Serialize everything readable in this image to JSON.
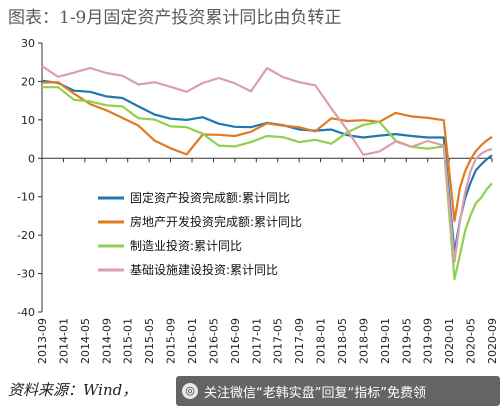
{
  "header": {
    "title": "图表：1-9月固定资产投资累计同比由负转正"
  },
  "footer": {
    "source": "资料来源：Wind，"
  },
  "watermark": {
    "text": "关注微信“老韩实盘”回复“指标”免费领"
  },
  "chart_data": {
    "type": "line",
    "ylim": [
      -40,
      30
    ],
    "yticks": [
      "-40",
      "-30",
      "-20",
      "-10",
      "0",
      "10",
      "20",
      "30"
    ],
    "x_range": [
      "2013-09",
      "2020-09"
    ],
    "xticks": [
      "2013-09",
      "2014-01",
      "2014-05",
      "2014-09",
      "2015-01",
      "2015-05",
      "2015-09",
      "2016-01",
      "2016-05",
      "2016-09",
      "2017-01",
      "2017-05",
      "2017-09",
      "2018-01",
      "2018-05",
      "2018-09",
      "2019-01",
      "2019-05",
      "2019-09",
      "2020-01",
      "2020-05",
      "2020-09"
    ],
    "legend": {
      "placement": "inside-bottom-left"
    },
    "series": [
      {
        "name": "固定资产投资完成额:累计同比",
        "color": "#1f77b4",
        "points": [
          [
            "2013-09",
            20.2
          ],
          [
            "2013-12",
            19.6
          ],
          [
            "2014-03",
            17.6
          ],
          [
            "2014-06",
            17.3
          ],
          [
            "2014-09",
            16.1
          ],
          [
            "2014-12",
            15.7
          ],
          [
            "2015-03",
            13.5
          ],
          [
            "2015-06",
            11.4
          ],
          [
            "2015-09",
            10.3
          ],
          [
            "2015-12",
            10.0
          ],
          [
            "2016-03",
            10.7
          ],
          [
            "2016-06",
            9.0
          ],
          [
            "2016-09",
            8.2
          ],
          [
            "2016-12",
            8.1
          ],
          [
            "2017-03",
            9.2
          ],
          [
            "2017-06",
            8.6
          ],
          [
            "2017-09",
            7.5
          ],
          [
            "2017-12",
            7.2
          ],
          [
            "2018-03",
            7.5
          ],
          [
            "2018-06",
            6.0
          ],
          [
            "2018-09",
            5.4
          ],
          [
            "2018-12",
            5.9
          ],
          [
            "2019-03",
            6.3
          ],
          [
            "2019-06",
            5.8
          ],
          [
            "2019-09",
            5.4
          ],
          [
            "2019-12",
            5.4
          ],
          [
            "2020-02",
            -24.5
          ],
          [
            "2020-03",
            -16.1
          ],
          [
            "2020-04",
            -10.3
          ],
          [
            "2020-05",
            -6.3
          ],
          [
            "2020-06",
            -3.1
          ],
          [
            "2020-07",
            -1.6
          ],
          [
            "2020-08",
            -0.3
          ],
          [
            "2020-09",
            0.8
          ]
        ]
      },
      {
        "name": "房地产开发投资完成额:累计同比",
        "color": "#e07b22",
        "points": [
          [
            "2013-09",
            19.7
          ],
          [
            "2013-12",
            19.8
          ],
          [
            "2014-03",
            16.8
          ],
          [
            "2014-06",
            14.1
          ],
          [
            "2014-09",
            12.5
          ],
          [
            "2014-12",
            10.5
          ],
          [
            "2015-03",
            8.5
          ],
          [
            "2015-06",
            4.6
          ],
          [
            "2015-09",
            2.6
          ],
          [
            "2015-12",
            1.0
          ],
          [
            "2016-03",
            6.2
          ],
          [
            "2016-06",
            6.1
          ],
          [
            "2016-09",
            5.8
          ],
          [
            "2016-12",
            6.9
          ],
          [
            "2017-03",
            9.1
          ],
          [
            "2017-06",
            8.5
          ],
          [
            "2017-09",
            8.1
          ],
          [
            "2017-12",
            7.0
          ],
          [
            "2018-03",
            10.4
          ],
          [
            "2018-06",
            9.7
          ],
          [
            "2018-09",
            9.9
          ],
          [
            "2018-12",
            9.5
          ],
          [
            "2019-03",
            11.8
          ],
          [
            "2019-06",
            10.9
          ],
          [
            "2019-09",
            10.5
          ],
          [
            "2019-12",
            9.9
          ],
          [
            "2020-02",
            -16.3
          ],
          [
            "2020-03",
            -7.7
          ],
          [
            "2020-04",
            -3.3
          ],
          [
            "2020-05",
            -0.3
          ],
          [
            "2020-06",
            1.9
          ],
          [
            "2020-07",
            3.4
          ],
          [
            "2020-08",
            4.6
          ],
          [
            "2020-09",
            5.6
          ]
        ]
      },
      {
        "name": "制造业投资:累计同比",
        "color": "#8fd14f",
        "points": [
          [
            "2013-09",
            18.5
          ],
          [
            "2013-12",
            18.5
          ],
          [
            "2014-03",
            15.2
          ],
          [
            "2014-06",
            14.8
          ],
          [
            "2014-09",
            13.8
          ],
          [
            "2014-12",
            13.5
          ],
          [
            "2015-03",
            10.4
          ],
          [
            "2015-06",
            10.1
          ],
          [
            "2015-09",
            8.3
          ],
          [
            "2015-12",
            8.1
          ],
          [
            "2016-03",
            6.4
          ],
          [
            "2016-06",
            3.3
          ],
          [
            "2016-09",
            3.1
          ],
          [
            "2016-12",
            4.2
          ],
          [
            "2017-03",
            5.8
          ],
          [
            "2017-06",
            5.5
          ],
          [
            "2017-09",
            4.2
          ],
          [
            "2017-12",
            4.8
          ],
          [
            "2018-03",
            3.8
          ],
          [
            "2018-06",
            6.8
          ],
          [
            "2018-09",
            8.7
          ],
          [
            "2018-12",
            9.5
          ],
          [
            "2019-03",
            4.6
          ],
          [
            "2019-06",
            3.0
          ],
          [
            "2019-09",
            2.5
          ],
          [
            "2019-12",
            3.1
          ],
          [
            "2020-02",
            -31.5
          ],
          [
            "2020-03",
            -25.2
          ],
          [
            "2020-04",
            -18.8
          ],
          [
            "2020-05",
            -14.8
          ],
          [
            "2020-06",
            -11.7
          ],
          [
            "2020-07",
            -10.2
          ],
          [
            "2020-08",
            -8.1
          ],
          [
            "2020-09",
            -6.5
          ]
        ]
      },
      {
        "name": "基础设施建设投资:累计同比",
        "color": "#d9a0a8",
        "points": [
          [
            "2013-09",
            24.0
          ],
          [
            "2013-12",
            21.2
          ],
          [
            "2014-03",
            22.3
          ],
          [
            "2014-06",
            23.5
          ],
          [
            "2014-09",
            22.2
          ],
          [
            "2014-12",
            21.5
          ],
          [
            "2015-03",
            19.2
          ],
          [
            "2015-06",
            19.8
          ],
          [
            "2015-09",
            18.6
          ],
          [
            "2015-12",
            17.3
          ],
          [
            "2016-03",
            19.6
          ],
          [
            "2016-06",
            20.9
          ],
          [
            "2016-09",
            19.5
          ],
          [
            "2016-12",
            17.4
          ],
          [
            "2017-03",
            23.5
          ],
          [
            "2017-06",
            21.1
          ],
          [
            "2017-09",
            19.8
          ],
          [
            "2017-12",
            19.0
          ],
          [
            "2018-03",
            13.0
          ],
          [
            "2018-06",
            7.3
          ],
          [
            "2018-09",
            0.9
          ],
          [
            "2018-12",
            1.8
          ],
          [
            "2019-03",
            4.4
          ],
          [
            "2019-06",
            3.0
          ],
          [
            "2019-09",
            4.5
          ],
          [
            "2019-12",
            3.3
          ],
          [
            "2020-02",
            -26.9
          ],
          [
            "2020-03",
            -16.4
          ],
          [
            "2020-04",
            -8.8
          ],
          [
            "2020-05",
            -3.3
          ],
          [
            "2020-06",
            -0.1
          ],
          [
            "2020-07",
            1.2
          ],
          [
            "2020-08",
            2.0
          ],
          [
            "2020-09",
            2.4
          ]
        ]
      }
    ]
  }
}
